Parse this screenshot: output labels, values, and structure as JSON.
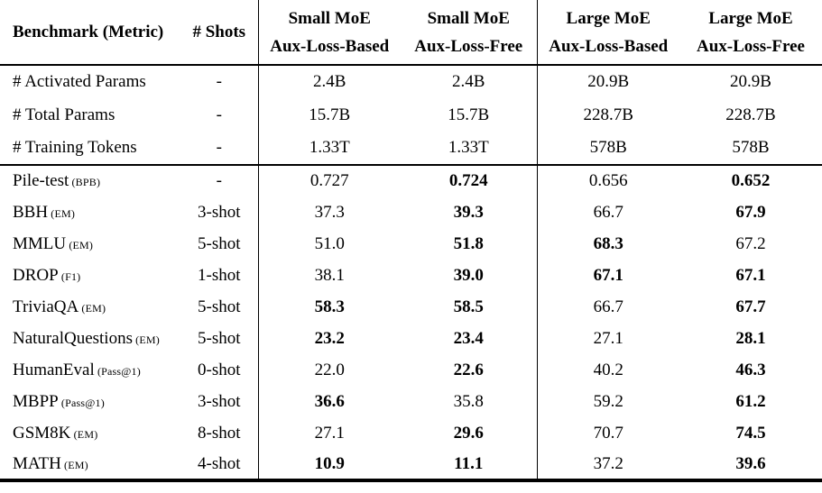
{
  "colors": {
    "text": "#000000",
    "background": "#ffffff",
    "rule": "#000000"
  },
  "table": {
    "header": {
      "col1": "Benchmark (Metric)",
      "col2": "# Shots",
      "groups": [
        {
          "line1": "Small MoE",
          "line2": "Aux-Loss-Based"
        },
        {
          "line1": "Small MoE",
          "line2": "Aux-Loss-Free"
        },
        {
          "line1": "Large MoE",
          "line2": "Aux-Loss-Based"
        },
        {
          "line1": "Large MoE",
          "line2": "Aux-Loss-Free"
        }
      ]
    },
    "param_rows": [
      {
        "label": "# Activated Params",
        "metric": "",
        "shots": "-",
        "values": [
          {
            "t": "2.4B",
            "b": false
          },
          {
            "t": "2.4B",
            "b": false
          },
          {
            "t": "20.9B",
            "b": false
          },
          {
            "t": "20.9B",
            "b": false
          }
        ]
      },
      {
        "label": "# Total Params",
        "metric": "",
        "shots": "-",
        "values": [
          {
            "t": "15.7B",
            "b": false
          },
          {
            "t": "15.7B",
            "b": false
          },
          {
            "t": "228.7B",
            "b": false
          },
          {
            "t": "228.7B",
            "b": false
          }
        ]
      },
      {
        "label": "# Training Tokens",
        "metric": "",
        "shots": "-",
        "values": [
          {
            "t": "1.33T",
            "b": false
          },
          {
            "t": "1.33T",
            "b": false
          },
          {
            "t": "578B",
            "b": false
          },
          {
            "t": "578B",
            "b": false
          }
        ]
      }
    ],
    "benchmark_rows": [
      {
        "label": "Pile-test",
        "metric": "(BPB)",
        "shots": "-",
        "values": [
          {
            "t": "0.727",
            "b": false
          },
          {
            "t": "0.724",
            "b": true
          },
          {
            "t": "0.656",
            "b": false
          },
          {
            "t": "0.652",
            "b": true
          }
        ]
      },
      {
        "label": "BBH",
        "metric": "(EM)",
        "shots": "3-shot",
        "values": [
          {
            "t": "37.3",
            "b": false
          },
          {
            "t": "39.3",
            "b": true
          },
          {
            "t": "66.7",
            "b": false
          },
          {
            "t": "67.9",
            "b": true
          }
        ]
      },
      {
        "label": "MMLU",
        "metric": "(EM)",
        "shots": "5-shot",
        "values": [
          {
            "t": "51.0",
            "b": false
          },
          {
            "t": "51.8",
            "b": true
          },
          {
            "t": "68.3",
            "b": true
          },
          {
            "t": "67.2",
            "b": false
          }
        ]
      },
      {
        "label": "DROP",
        "metric": "(F1)",
        "shots": "1-shot",
        "values": [
          {
            "t": "38.1",
            "b": false
          },
          {
            "t": "39.0",
            "b": true
          },
          {
            "t": "67.1",
            "b": true
          },
          {
            "t": "67.1",
            "b": true
          }
        ]
      },
      {
        "label": "TriviaQA",
        "metric": "(EM)",
        "shots": "5-shot",
        "values": [
          {
            "t": "58.3",
            "b": true
          },
          {
            "t": "58.5",
            "b": true
          },
          {
            "t": "66.7",
            "b": false
          },
          {
            "t": "67.7",
            "b": true
          }
        ]
      },
      {
        "label": "NaturalQuestions",
        "metric": "(EM)",
        "shots": "5-shot",
        "values": [
          {
            "t": "23.2",
            "b": true
          },
          {
            "t": "23.4",
            "b": true
          },
          {
            "t": "27.1",
            "b": false
          },
          {
            "t": "28.1",
            "b": true
          }
        ]
      },
      {
        "label": "HumanEval",
        "metric": "(Pass@1)",
        "shots": "0-shot",
        "values": [
          {
            "t": "22.0",
            "b": false
          },
          {
            "t": "22.6",
            "b": true
          },
          {
            "t": "40.2",
            "b": false
          },
          {
            "t": "46.3",
            "b": true
          }
        ]
      },
      {
        "label": "MBPP",
        "metric": "(Pass@1)",
        "shots": "3-shot",
        "values": [
          {
            "t": "36.6",
            "b": true
          },
          {
            "t": "35.8",
            "b": false
          },
          {
            "t": "59.2",
            "b": false
          },
          {
            "t": "61.2",
            "b": true
          }
        ]
      },
      {
        "label": "GSM8K",
        "metric": "(EM)",
        "shots": "8-shot",
        "values": [
          {
            "t": "27.1",
            "b": false
          },
          {
            "t": "29.6",
            "b": true
          },
          {
            "t": "70.7",
            "b": false
          },
          {
            "t": "74.5",
            "b": true
          }
        ]
      },
      {
        "label": "MATH",
        "metric": "(EM)",
        "shots": "4-shot",
        "values": [
          {
            "t": "10.9",
            "b": true
          },
          {
            "t": "11.1",
            "b": true
          },
          {
            "t": "37.2",
            "b": false
          },
          {
            "t": "39.6",
            "b": true
          }
        ]
      }
    ]
  }
}
